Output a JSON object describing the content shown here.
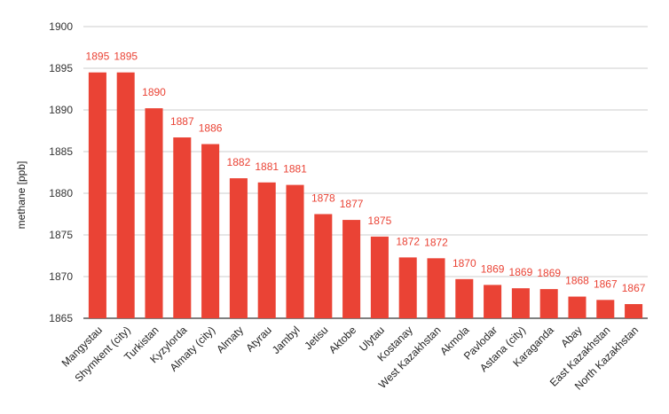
{
  "chart_data": {
    "type": "bar",
    "title": "",
    "xlabel": "",
    "ylabel": "methane [ppb]",
    "ylim": [
      1865,
      1900
    ],
    "yticks": [
      1865,
      1870,
      1875,
      1880,
      1885,
      1890,
      1895,
      1900
    ],
    "grid": true,
    "bar_color": "#ea4335",
    "label_color": "#ea4335",
    "categories": [
      "Mangystau",
      "Shymkent (city)",
      "Turkistan",
      "Kyzylorda",
      "Almaty (city)",
      "Almaty",
      "Atyrau",
      "Jambyl",
      "Jetisu",
      "Aktobe",
      "Ulytau",
      "Kostanay",
      "West Kazakhstan",
      "Akmola",
      "Pavlodar",
      "Astana (city)",
      "Karaganda",
      "Abay",
      "East Kazakhstan",
      "North Kazakhstan"
    ],
    "values": [
      1894.5,
      1894.5,
      1890.2,
      1886.7,
      1885.9,
      1881.8,
      1881.3,
      1881.0,
      1877.5,
      1876.8,
      1874.8,
      1872.3,
      1872.2,
      1869.7,
      1869.0,
      1868.6,
      1868.5,
      1867.6,
      1867.2,
      1866.7
    ],
    "data_labels": [
      "1895",
      "1895",
      "1890",
      "1887",
      "1886",
      "1882",
      "1881",
      "1881",
      "1878",
      "1877",
      "1875",
      "1872",
      "1872",
      "1870",
      "1869",
      "1869",
      "1869",
      "1868",
      "1867",
      "1867"
    ]
  }
}
